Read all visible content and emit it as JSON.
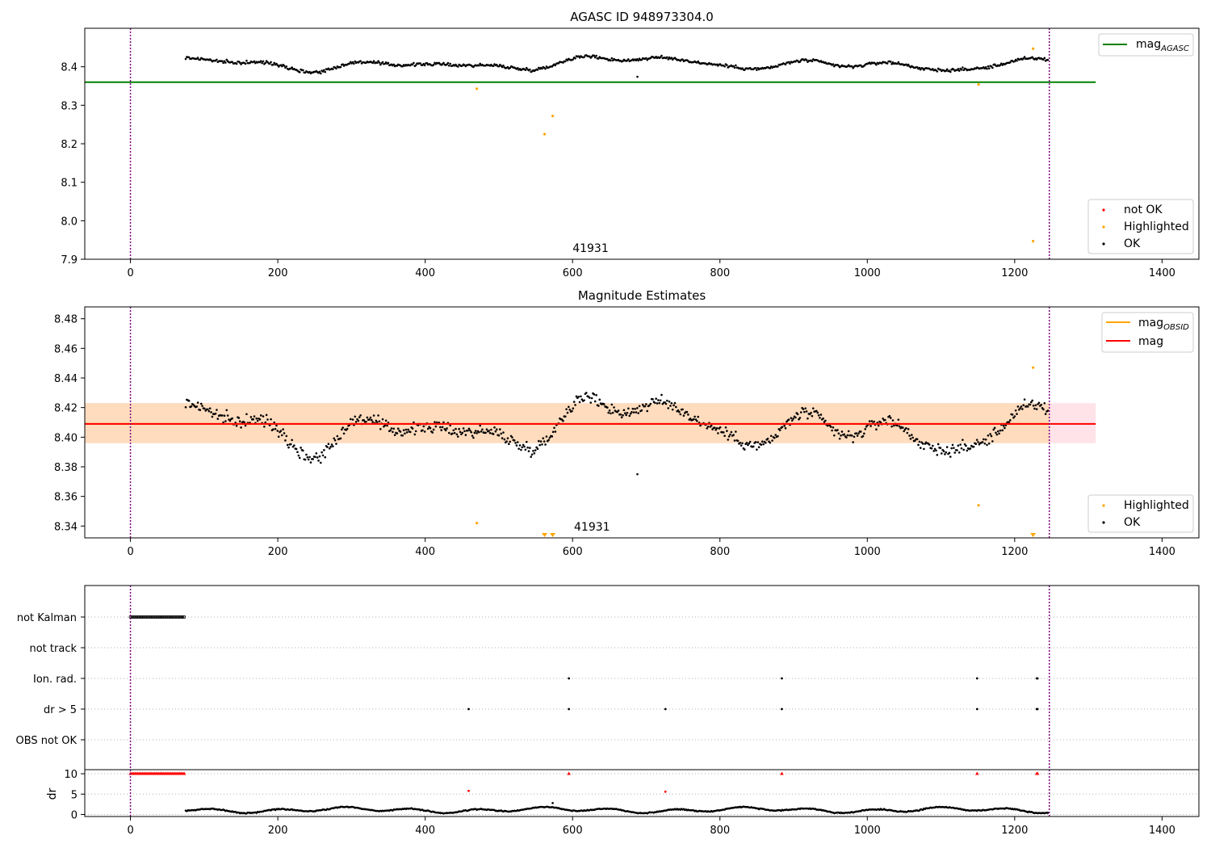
{
  "chart_data": [
    {
      "type": "scatter",
      "title": "AGASC ID 948973304.0",
      "xlim": [
        -62,
        1450
      ],
      "ylim": [
        7.9,
        8.5
      ],
      "xticks": [
        0,
        200,
        400,
        600,
        800,
        1000,
        1200,
        1400
      ],
      "xtick_labels": [
        "0",
        "200",
        "400",
        "600",
        "800",
        "1000",
        "1200",
        "1400"
      ],
      "yticks": [
        7.9,
        8.0,
        8.1,
        8.2,
        8.3,
        8.4
      ],
      "ytick_labels": [
        "7.9",
        "8.0",
        "8.1",
        "8.2",
        "8.3",
        "8.4"
      ],
      "vlines": [
        0,
        1247
      ],
      "annotation": {
        "x": 600,
        "text": "41931"
      },
      "mag_agasc": {
        "value": 8.36,
        "x_range": [
          -62,
          1310
        ],
        "color": "#008000"
      },
      "ok_points": {
        "x_start": 75,
        "x_end": 1245,
        "count": 780,
        "base": 8.408,
        "amp": 0.022,
        "color": "#000000"
      },
      "highlighted_points": {
        "x": [
          470,
          562,
          573,
          1151,
          1225,
          1225
        ],
        "y": [
          8.343,
          8.225,
          8.272,
          8.354,
          8.447,
          7.947
        ],
        "color": "#ffa500"
      },
      "outliers_ok": {
        "x": [
          688
        ],
        "y": [
          8.374
        ]
      },
      "legend_lines": {
        "label": "mag",
        "subscript": "AGASC"
      },
      "legend_points": [
        {
          "label": "not OK",
          "color": "#ff0000"
        },
        {
          "label": "Highlighted",
          "color": "#ffa500"
        },
        {
          "label": "OK",
          "color": "#000000"
        }
      ]
    },
    {
      "type": "scatter",
      "title": "Magnitude Estimates",
      "xlim": [
        -62,
        1450
      ],
      "ylim": [
        8.332,
        8.488
      ],
      "xticks": [
        0,
        200,
        400,
        600,
        800,
        1000,
        1200,
        1400
      ],
      "xtick_labels": [
        "0",
        "200",
        "400",
        "600",
        "800",
        "1000",
        "1200",
        "1400"
      ],
      "yticks": [
        8.34,
        8.36,
        8.38,
        8.4,
        8.42,
        8.44,
        8.46,
        8.48
      ],
      "ytick_labels": [
        "8.34",
        "8.36",
        "8.38",
        "8.40",
        "8.42",
        "8.44",
        "8.46",
        "8.48"
      ],
      "vlines": [
        0,
        1247
      ],
      "annotation": {
        "x": 600,
        "text": "41931"
      },
      "mag": {
        "value": 8.409,
        "color": "#ff0000"
      },
      "mag_obsid": {
        "value": 8.409,
        "color": "#ffa500"
      },
      "band_outer": {
        "low": 8.396,
        "high": 8.423,
        "x_range": [
          -62,
          1310
        ],
        "color": "#ffc0cb"
      },
      "band_inner": {
        "low": 8.396,
        "high": 8.423,
        "x_range": [
          -62,
          1247
        ],
        "color": "#ffdab9"
      },
      "ok_points": {
        "x_start": 75,
        "x_end": 1245,
        "count": 780,
        "base": 8.408,
        "amp": 0.022
      },
      "highlighted_points": {
        "x": [
          470,
          1151,
          1225
        ],
        "y": [
          8.342,
          8.354,
          8.447
        ]
      },
      "highlighted_offscale_x": [
        562,
        573,
        1225
      ],
      "outliers_ok": {
        "x": [
          688
        ],
        "y": [
          8.375
        ]
      },
      "legend_lines": [
        {
          "label": "mag",
          "subscript": "OBSID",
          "color": "#ffa500"
        },
        {
          "label": "mag",
          "subscript": "",
          "color": "#ff0000"
        }
      ],
      "legend_points": [
        {
          "label": "Highlighted",
          "color": "#ffa500"
        },
        {
          "label": "OK",
          "color": "#000000"
        }
      ]
    },
    {
      "type": "scatter",
      "title": "",
      "xlim": [
        -62,
        1450
      ],
      "categories": [
        "not Kalman",
        "not track",
        "Ion. rad.",
        "dr > 5",
        "OBS not OK"
      ],
      "flags": {
        "not Kalman": {
          "x_start": 0,
          "x_end": 73,
          "count": 37
        },
        "not track": {
          "x": []
        },
        "Ion. rad.": {
          "x": [
            595,
            884,
            1149,
            1230,
            1231
          ]
        },
        "dr > 5": {
          "x": [
            459,
            595,
            726,
            884,
            1149,
            1230,
            1231
          ]
        },
        "OBS not OK": {
          "x": []
        }
      },
      "dr_ylabel": "dr",
      "dr_yticks": [
        0,
        5,
        10
      ],
      "dr_ytick_labels": [
        "0",
        "5",
        "10"
      ],
      "dr_ylim": [
        -0.5,
        11
      ],
      "dr_red_capped": {
        "x_start": 0,
        "x_end": 73,
        "count": 37,
        "value": 10
      },
      "dr_red_extra": {
        "x": [
          595,
          884,
          1149,
          1230,
          1231
        ],
        "y": [
          10,
          10,
          10,
          10,
          10
        ]
      },
      "dr_red_points": {
        "x": [
          459,
          726
        ],
        "y": [
          5.8,
          5.6
        ]
      },
      "dr_ok": {
        "x_start": 75,
        "x_end": 1245,
        "count": 780,
        "base": 1.1,
        "amp": 0.7
      },
      "dr_ok_extra": {
        "x": [
          573
        ],
        "y": [
          2.8
        ]
      },
      "xticks": [
        0,
        200,
        400,
        600,
        800,
        1000,
        1200,
        1400
      ],
      "xtick_labels": [
        "0",
        "200",
        "400",
        "600",
        "800",
        "1000",
        "1200",
        "1400"
      ],
      "vlines": [
        0,
        1247
      ]
    }
  ]
}
